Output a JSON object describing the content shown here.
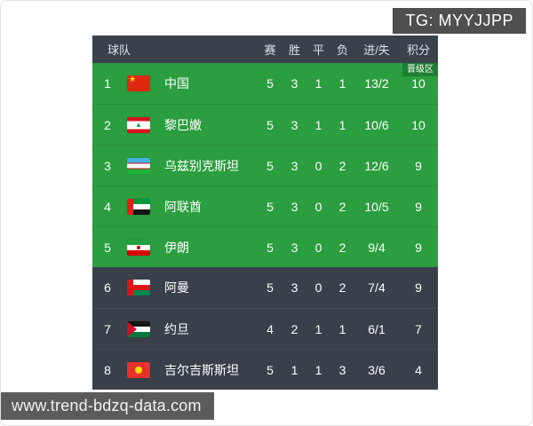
{
  "watermarks": {
    "top_right": "TG: MYYJJPP",
    "bottom_left": "www.trend-bdzq-data.com"
  },
  "colors": {
    "promotion_row_green": "#2b9e3f",
    "promotion_badge_green": "#1e7e31",
    "dark_row": "#394049",
    "header_bar": "#3a414b",
    "watermark_gray": "#4f4f50"
  },
  "table": {
    "headers": [
      "球队",
      "赛",
      "胜",
      "平",
      "负",
      "进/失",
      "积分"
    ],
    "promotion_badge": "晋级区",
    "rows": [
      {
        "rank": "1",
        "team": "中国",
        "flag_icon": "china-flag-icon",
        "played": "5",
        "won": "3",
        "drawn": "1",
        "lost": "1",
        "goals": "13/2",
        "points": "10",
        "zone": "promotion"
      },
      {
        "rank": "2",
        "team": "黎巴嫩",
        "flag_icon": "lebanon-flag-icon",
        "played": "5",
        "won": "3",
        "drawn": "1",
        "lost": "1",
        "goals": "10/6",
        "points": "10",
        "zone": "promotion"
      },
      {
        "rank": "3",
        "team": "乌兹别克斯坦",
        "flag_icon": "uzbekistan-flag-icon",
        "played": "5",
        "won": "3",
        "drawn": "0",
        "lost": "2",
        "goals": "12/6",
        "points": "9",
        "zone": "promotion"
      },
      {
        "rank": "4",
        "team": "阿联酋",
        "flag_icon": "uae-flag-icon",
        "played": "5",
        "won": "3",
        "drawn": "0",
        "lost": "2",
        "goals": "10/5",
        "points": "9",
        "zone": "promotion"
      },
      {
        "rank": "5",
        "team": "伊朗",
        "flag_icon": "iran-flag-icon",
        "played": "5",
        "won": "3",
        "drawn": "0",
        "lost": "2",
        "goals": "9/4",
        "points": "9",
        "zone": "promotion"
      },
      {
        "rank": "6",
        "team": "阿曼",
        "flag_icon": "oman-flag-icon",
        "played": "5",
        "won": "3",
        "drawn": "0",
        "lost": "2",
        "goals": "7/4",
        "points": "9",
        "zone": "none"
      },
      {
        "rank": "7",
        "team": "约旦",
        "flag_icon": "jordan-flag-icon",
        "played": "4",
        "won": "2",
        "drawn": "1",
        "lost": "1",
        "goals": "6/1",
        "points": "7",
        "zone": "none"
      },
      {
        "rank": "8",
        "team": "吉尔吉斯斯坦",
        "flag_icon": "kyrgyzstan-flag-icon",
        "played": "5",
        "won": "1",
        "drawn": "1",
        "lost": "3",
        "goals": "3/6",
        "points": "4",
        "zone": "none"
      }
    ]
  }
}
